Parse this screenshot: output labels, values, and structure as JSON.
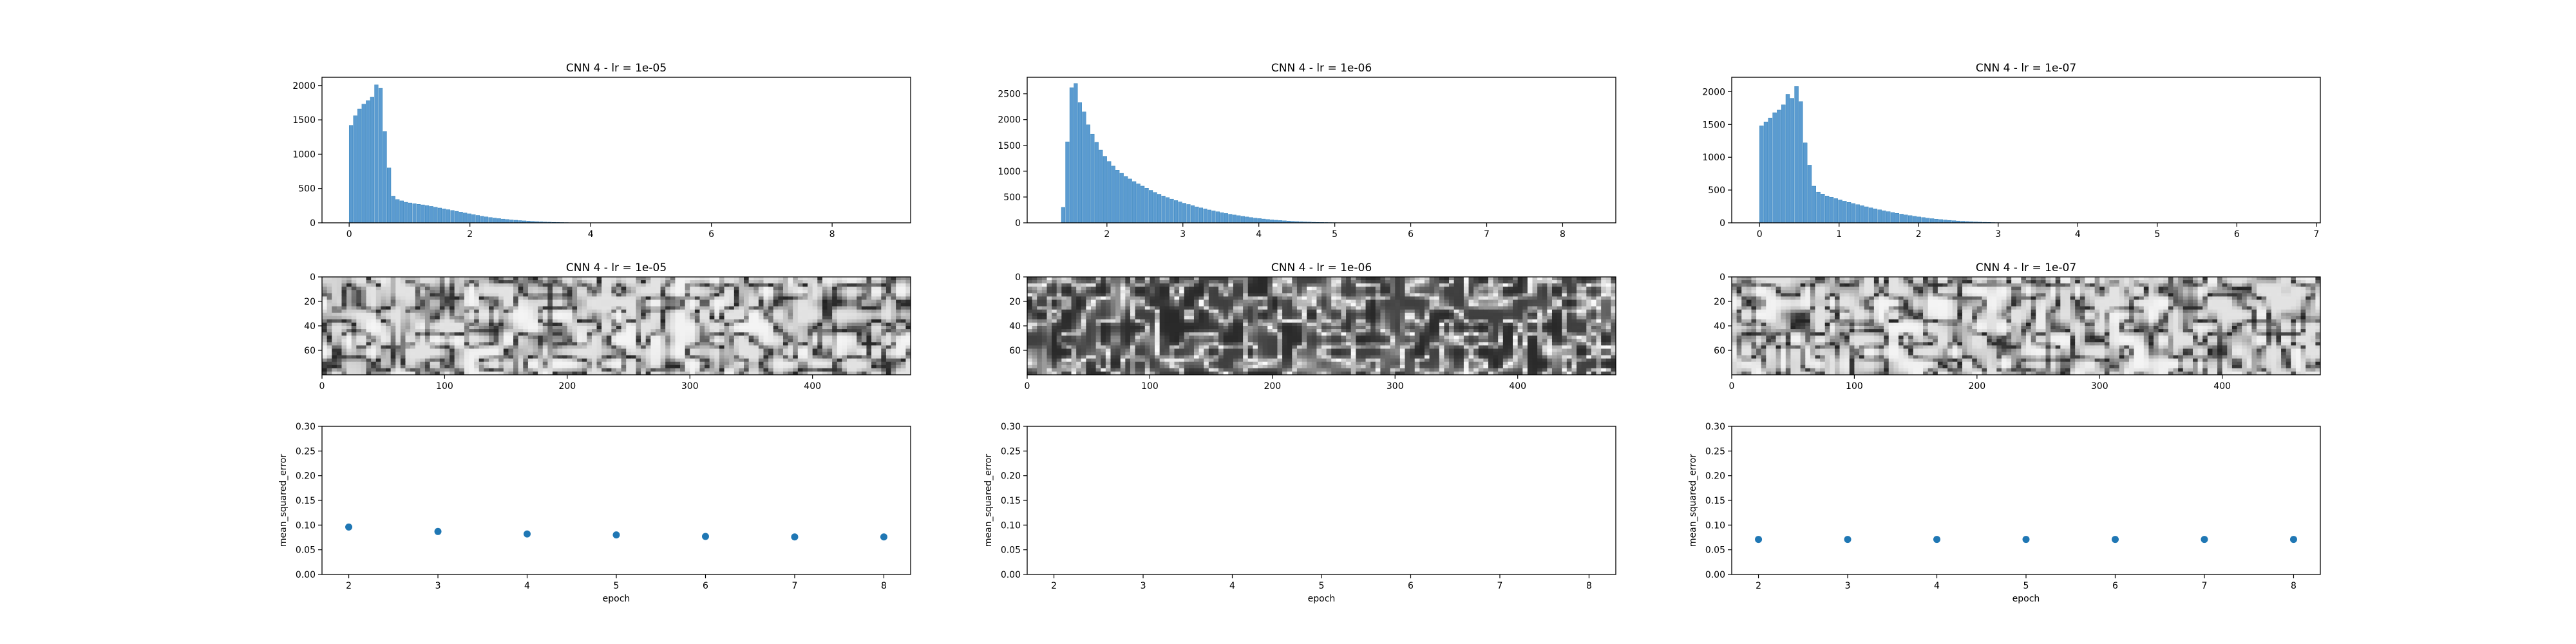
{
  "chart_data": [
    {
      "type": "bar",
      "title": "CNN 4 - lr = 1e-05",
      "xlim": [
        -0.45,
        9.3
      ],
      "ylim": [
        0,
        2120
      ],
      "xticks": [
        0,
        2,
        4,
        6,
        8
      ],
      "xticklabels": [
        "0",
        "2",
        "4",
        "6",
        "8"
      ],
      "yticks": [
        0,
        500,
        1000,
        1500,
        2000
      ],
      "yticklabels": [
        "0",
        "500",
        "1000",
        "1500",
        "2000"
      ],
      "bin_width": 0.07,
      "x": [
        0.0,
        0.07,
        0.14,
        0.21,
        0.28,
        0.35,
        0.42,
        0.49,
        0.56,
        0.63,
        0.7,
        0.77,
        0.84,
        0.91,
        0.98,
        1.05,
        1.12,
        1.19,
        1.26,
        1.33,
        1.4,
        1.47,
        1.54,
        1.61,
        1.68,
        1.75,
        1.82,
        1.89,
        1.96,
        2.03,
        2.1,
        2.17,
        2.24,
        2.31,
        2.38,
        2.45,
        2.52,
        2.59,
        2.66,
        2.73,
        2.8,
        2.87,
        2.94,
        3.01,
        3.08,
        3.15,
        3.22,
        3.29,
        3.36,
        3.43,
        3.5,
        3.57,
        3.64,
        3.71,
        3.78,
        3.85,
        3.92,
        3.99,
        4.06,
        4.13,
        4.2,
        4.27,
        4.34,
        4.41,
        4.48,
        4.55,
        4.62,
        4.69,
        4.76,
        4.83,
        4.9,
        4.97,
        5.04,
        5.11,
        5.18,
        5.25,
        5.32,
        5.39,
        5.46,
        5.53,
        5.6,
        5.67,
        5.74,
        5.81,
        5.88,
        5.95,
        6.02,
        6.09,
        6.16,
        6.23,
        6.3,
        6.37,
        6.44,
        6.51,
        6.58,
        6.65,
        6.72,
        6.79,
        6.86,
        6.93,
        7.0,
        7.07,
        7.14,
        7.21,
        7.28,
        7.35,
        7.42,
        7.49,
        7.56,
        7.63,
        7.7,
        7.77,
        7.84,
        7.91,
        7.98,
        8.05,
        8.12,
        8.19,
        8.26,
        8.33,
        8.4,
        8.47,
        8.54,
        8.61,
        8.68,
        8.75
      ],
      "values": [
        1420,
        1560,
        1660,
        1730,
        1780,
        1830,
        2010,
        1960,
        1330,
        800,
        390,
        340,
        320,
        300,
        290,
        280,
        270,
        262,
        252,
        240,
        228,
        216,
        204,
        192,
        180,
        168,
        156,
        144,
        132,
        120,
        108,
        97,
        87,
        78,
        70,
        62,
        55,
        49,
        43,
        38,
        33,
        29,
        25,
        21,
        18,
        15,
        12,
        10,
        8,
        6,
        5,
        4,
        3,
        2,
        2,
        1,
        1,
        1,
        1,
        1,
        1,
        1,
        1,
        1,
        1,
        1,
        1,
        1,
        1,
        1,
        1,
        1,
        1,
        1,
        1,
        1,
        1,
        1,
        1,
        1,
        1,
        1,
        1,
        1,
        1,
        1,
        1,
        1,
        1,
        1,
        1,
        1,
        1,
        1,
        1,
        1,
        1,
        1,
        1,
        1,
        1,
        1,
        1,
        1,
        1,
        1,
        1,
        1,
        1,
        1,
        1,
        1,
        1,
        1,
        1,
        1,
        1,
        1,
        1,
        1,
        1,
        1,
        1,
        1,
        1,
        1
      ]
    },
    {
      "type": "bar",
      "title": "CNN 4 - lr = 1e-06",
      "xlim": [
        0.95,
        8.7
      ],
      "ylim": [
        0,
        2820
      ],
      "xticks": [
        2,
        3,
        4,
        5,
        6,
        7,
        8
      ],
      "xticklabels": [
        "2",
        "3",
        "4",
        "5",
        "6",
        "7",
        "8"
      ],
      "yticks": [
        0,
        500,
        1000,
        1500,
        2000,
        2500
      ],
      "yticklabels": [
        "0",
        "500",
        "1000",
        "1500",
        "2000",
        "2500"
      ],
      "bin_width": 0.055,
      "x": [
        1.4,
        1.455,
        1.51,
        1.565,
        1.62,
        1.675,
        1.73,
        1.785,
        1.84,
        1.895,
        1.95,
        2.005,
        2.06,
        2.115,
        2.17,
        2.225,
        2.28,
        2.335,
        2.39,
        2.445,
        2.5,
        2.555,
        2.61,
        2.665,
        2.72,
        2.775,
        2.83,
        2.885,
        2.94,
        2.995,
        3.05,
        3.105,
        3.16,
        3.215,
        3.27,
        3.325,
        3.38,
        3.435,
        3.49,
        3.545,
        3.6,
        3.655,
        3.71,
        3.765,
        3.82,
        3.875,
        3.93,
        3.985,
        4.04,
        4.095,
        4.15,
        4.205,
        4.26,
        4.315,
        4.37,
        4.425,
        4.48,
        4.535,
        4.59,
        4.645,
        4.7,
        4.755,
        4.81,
        4.865,
        4.92,
        4.975,
        5.03,
        5.085,
        5.14,
        5.195,
        5.25,
        5.305,
        5.36,
        5.415,
        5.47,
        5.525,
        5.58,
        5.635,
        5.69,
        5.745,
        5.8,
        5.855,
        5.91,
        5.965,
        6.02,
        6.075,
        6.13,
        6.185,
        6.24,
        6.295,
        6.35,
        6.405,
        6.46,
        6.515,
        6.57,
        6.625,
        6.68,
        6.735,
        6.79,
        6.845,
        6.9,
        6.955,
        7.01,
        7.065,
        7.12,
        7.175,
        7.23,
        7.285,
        7.34,
        7.395,
        7.45,
        7.505,
        7.56,
        7.615,
        7.67,
        7.725,
        7.78,
        7.835,
        7.89,
        7.945,
        8.0,
        8.055,
        8.11,
        8.165,
        8.22
      ],
      "values": [
        300,
        1570,
        2620,
        2700,
        2330,
        2150,
        1900,
        1720,
        1560,
        1410,
        1290,
        1190,
        1100,
        1020,
        960,
        900,
        850,
        800,
        755,
        712,
        670,
        630,
        590,
        555,
        520,
        490,
        460,
        432,
        406,
        380,
        356,
        333,
        310,
        290,
        270,
        250,
        232,
        215,
        198,
        182,
        167,
        152,
        139,
        126,
        114,
        103,
        92,
        83,
        74,
        66,
        58,
        51,
        45,
        39,
        34,
        29,
        25,
        21,
        18,
        15,
        12,
        10,
        8,
        7,
        6,
        5,
        4,
        3,
        2,
        2,
        1,
        1,
        1,
        1,
        1,
        1,
        1,
        1,
        1,
        1,
        1,
        1,
        1,
        1,
        1,
        1,
        1,
        1,
        1,
        1,
        1,
        1,
        1,
        1,
        1,
        1,
        1,
        1,
        1,
        1,
        1,
        1,
        1,
        1,
        1,
        1,
        1,
        1,
        1,
        1,
        1,
        1,
        1,
        1,
        1,
        1,
        1,
        1,
        1,
        1,
        1,
        1,
        1,
        1,
        1
      ]
    },
    {
      "type": "bar",
      "title": "CNN 4 - lr = 1e-07",
      "xlim": [
        -0.35,
        7.05
      ],
      "ylim": [
        0,
        2220
      ],
      "xticks": [
        0,
        1,
        2,
        3,
        4,
        5,
        6,
        7
      ],
      "xticklabels": [
        "0",
        "1",
        "2",
        "3",
        "4",
        "5",
        "6",
        "7"
      ],
      "yticks": [
        0,
        500,
        1000,
        1500,
        2000
      ],
      "yticklabels": [
        "0",
        "500",
        "1000",
        "1500",
        "2000"
      ],
      "bin_width": 0.055,
      "x": [
        0.0,
        0.055,
        0.11,
        0.165,
        0.22,
        0.275,
        0.33,
        0.385,
        0.44,
        0.495,
        0.55,
        0.605,
        0.66,
        0.715,
        0.77,
        0.825,
        0.88,
        0.935,
        0.99,
        1.045,
        1.1,
        1.155,
        1.21,
        1.265,
        1.32,
        1.375,
        1.43,
        1.485,
        1.54,
        1.595,
        1.65,
        1.705,
        1.76,
        1.815,
        1.87,
        1.925,
        1.98,
        2.035,
        2.09,
        2.145,
        2.2,
        2.255,
        2.31,
        2.365,
        2.42,
        2.475,
        2.53,
        2.585,
        2.64,
        2.695,
        2.75,
        2.805,
        2.86,
        2.915,
        2.97,
        3.025,
        3.08,
        3.135,
        3.19,
        3.245,
        3.3,
        3.355,
        3.41,
        3.465,
        3.52,
        3.575,
        3.63,
        3.685,
        3.74,
        3.795,
        3.85,
        3.905,
        3.96,
        4.015,
        4.07,
        4.125,
        4.18,
        4.235,
        4.29,
        4.345,
        4.4,
        4.455,
        4.51,
        4.565,
        4.62,
        4.675,
        4.73,
        4.785,
        4.84,
        4.895,
        4.95,
        5.005,
        5.06,
        5.115,
        5.17,
        5.225,
        5.28,
        5.335,
        5.39,
        5.445,
        5.5,
        5.555,
        5.61,
        5.665,
        5.72,
        5.775,
        5.83,
        5.885,
        5.94,
        5.995,
        6.05,
        6.105,
        6.16,
        6.215,
        6.27,
        6.325,
        6.38,
        6.435,
        6.49,
        6.545,
        6.6,
        6.655,
        6.71,
        6.765,
        6.82
      ],
      "values": [
        1480,
        1540,
        1600,
        1680,
        1720,
        1800,
        1960,
        1900,
        2080,
        1850,
        1220,
        880,
        560,
        470,
        440,
        410,
        390,
        370,
        350,
        330,
        312,
        295,
        278,
        261,
        245,
        229,
        214,
        199,
        185,
        171,
        158,
        145,
        133,
        121,
        110,
        100,
        90,
        81,
        72,
        64,
        57,
        50,
        44,
        38,
        33,
        28,
        24,
        20,
        17,
        14,
        11,
        9,
        7,
        5,
        4,
        3,
        3,
        2,
        2,
        1,
        1,
        1,
        1,
        1,
        1,
        1,
        1,
        1,
        1,
        1,
        1,
        1,
        1,
        1,
        1,
        1,
        1,
        1,
        1,
        1,
        1,
        1,
        1,
        1,
        1,
        1,
        1,
        1,
        1,
        1,
        1,
        1,
        1,
        1,
        1,
        1,
        1,
        1,
        1,
        1,
        1,
        1,
        1,
        1,
        1,
        1,
        1,
        1,
        1,
        1,
        1,
        1,
        1,
        1,
        1,
        1,
        1,
        1,
        1,
        1,
        1,
        1,
        1,
        1,
        1
      ]
    },
    {
      "type": "heatmap",
      "title": "CNN 4 - lr = 1e-05",
      "xlim": [
        0,
        480
      ],
      "ylim": [
        80,
        0
      ],
      "xticks": [
        0,
        100,
        200,
        300,
        400
      ],
      "xticklabels": [
        "0",
        "100",
        "200",
        "300",
        "400"
      ],
      "yticks": [
        0,
        20,
        40,
        60
      ],
      "yticklabels": [
        "0",
        "20",
        "40",
        "60"
      ],
      "colormap": "gray",
      "tone": "light",
      "seed": 11
    },
    {
      "type": "heatmap",
      "title": "CNN 4 - lr = 1e-06",
      "xlim": [
        0,
        480
      ],
      "ylim": [
        80,
        0
      ],
      "xticks": [
        0,
        100,
        200,
        300,
        400
      ],
      "xticklabels": [
        "0",
        "100",
        "200",
        "300",
        "400"
      ],
      "yticks": [
        0,
        20,
        40,
        60
      ],
      "yticklabels": [
        "0",
        "20",
        "40",
        "60"
      ],
      "colormap": "gray",
      "tone": "dark",
      "seed": 23
    },
    {
      "type": "heatmap",
      "title": "CNN 4 - lr = 1e-07",
      "xlim": [
        0,
        480
      ],
      "ylim": [
        80,
        0
      ],
      "xticks": [
        0,
        100,
        200,
        300,
        400
      ],
      "xticklabels": [
        "0",
        "100",
        "200",
        "300",
        "400"
      ],
      "yticks": [
        0,
        20,
        40,
        60
      ],
      "yticklabels": [
        "0",
        "20",
        "40",
        "60"
      ],
      "colormap": "gray",
      "tone": "light",
      "seed": 37
    },
    {
      "type": "scatter",
      "xlabel": "epoch",
      "ylabel": "mean_squared_error",
      "xlim": [
        1.7,
        8.3
      ],
      "ylim": [
        0,
        0.3
      ],
      "xticks": [
        2,
        3,
        4,
        5,
        6,
        7,
        8
      ],
      "xticklabels": [
        "2",
        "3",
        "4",
        "5",
        "6",
        "7",
        "8"
      ],
      "yticks": [
        0,
        0.05,
        0.1,
        0.15,
        0.2,
        0.25,
        0.3
      ],
      "yticklabels": [
        "0.00",
        "0.05",
        "0.10",
        "0.15",
        "0.20",
        "0.25",
        "0.30"
      ],
      "x": [
        2,
        3,
        4,
        5,
        6,
        7,
        8
      ],
      "y": [
        0.096,
        0.087,
        0.082,
        0.08,
        0.077,
        0.076,
        0.076
      ]
    },
    {
      "type": "scatter",
      "xlabel": "epoch",
      "ylabel": "mean_squared_error",
      "xlim": [
        1.7,
        8.3
      ],
      "ylim": [
        0,
        0.3
      ],
      "xticks": [
        2,
        3,
        4,
        5,
        6,
        7,
        8
      ],
      "xticklabels": [
        "2",
        "3",
        "4",
        "5",
        "6",
        "7",
        "8"
      ],
      "yticks": [
        0,
        0.05,
        0.1,
        0.15,
        0.2,
        0.25,
        0.3
      ],
      "yticklabels": [
        "0.00",
        "0.05",
        "0.10",
        "0.15",
        "0.20",
        "0.25",
        "0.30"
      ],
      "x": [],
      "y": []
    },
    {
      "type": "scatter",
      "xlabel": "epoch",
      "ylabel": "mean_squared_error",
      "xlim": [
        1.7,
        8.3
      ],
      "ylim": [
        0,
        0.3
      ],
      "xticks": [
        2,
        3,
        4,
        5,
        6,
        7,
        8
      ],
      "xticklabels": [
        "2",
        "3",
        "4",
        "5",
        "6",
        "7",
        "8"
      ],
      "yticks": [
        0,
        0.05,
        0.1,
        0.15,
        0.2,
        0.25,
        0.3
      ],
      "yticklabels": [
        "0.00",
        "0.05",
        "0.10",
        "0.15",
        "0.20",
        "0.25",
        "0.30"
      ],
      "x": [
        2,
        3,
        4,
        5,
        6,
        7,
        8
      ],
      "y": [
        0.071,
        0.071,
        0.071,
        0.071,
        0.071,
        0.071,
        0.071
      ]
    }
  ],
  "colors": {
    "bar": "#5b9bd0",
    "bar_edge": "#1f77b4",
    "point": "#1f77b4",
    "axis": "#000000"
  }
}
